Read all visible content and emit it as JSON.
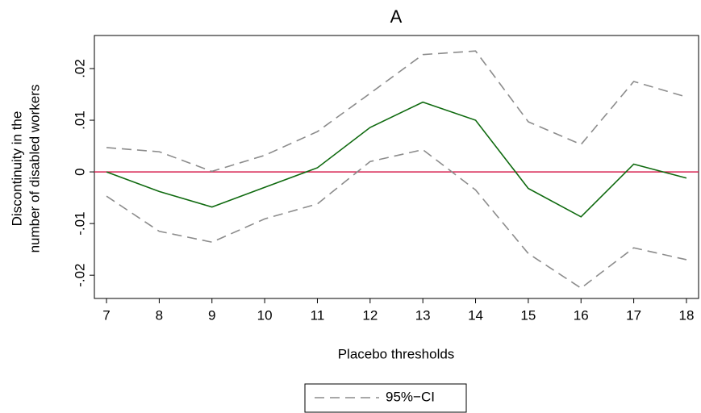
{
  "chart_data": {
    "type": "line",
    "title": "A",
    "xlabel": "Placebo thresholds",
    "ylabel": [
      "Discontinuity in the",
      "number of disabled workers"
    ],
    "x": [
      7,
      8,
      9,
      10,
      11,
      12,
      13,
      14,
      15,
      16,
      17,
      18
    ],
    "series": [
      {
        "color": "#0f6a0f",
        "dash": false,
        "values": [
          0.0,
          -0.0038,
          -0.0068,
          -0.003,
          0.0008,
          0.0086,
          0.0135,
          0.01,
          -0.0032,
          -0.0087,
          0.0015,
          -0.0012
        ]
      },
      {
        "name": "95%−CI",
        "color": "#8c8c8c",
        "dash": true,
        "values": [
          0.0047,
          0.0039,
          0.0001,
          0.0032,
          0.0078,
          0.0152,
          0.0227,
          0.0234,
          0.0097,
          0.0053,
          0.0175,
          0.0145
        ]
      },
      {
        "color": "#8c8c8c",
        "dash": true,
        "values": [
          -0.0047,
          -0.0115,
          -0.0136,
          -0.0091,
          -0.0062,
          0.002,
          0.0043,
          -0.0035,
          -0.0158,
          -0.0225,
          -0.0147,
          -0.017
        ]
      }
    ],
    "reference_line": {
      "value": 0,
      "color": "#d6204f"
    },
    "xlim": [
      6.77,
      18.23
    ],
    "xticks": [
      7,
      8,
      9,
      10,
      11,
      12,
      13,
      14,
      15,
      16,
      17,
      18
    ],
    "ylim": [
      -0.0245,
      0.0264
    ],
    "yticks": [
      {
        "value": -0.02,
        "label": "-.02"
      },
      {
        "value": -0.01,
        "label": "-.01"
      },
      0,
      {
        "value": 0.01,
        "label": ".01"
      },
      {
        "value": 0.02,
        "label": ".02"
      }
    ],
    "grid": false
  }
}
